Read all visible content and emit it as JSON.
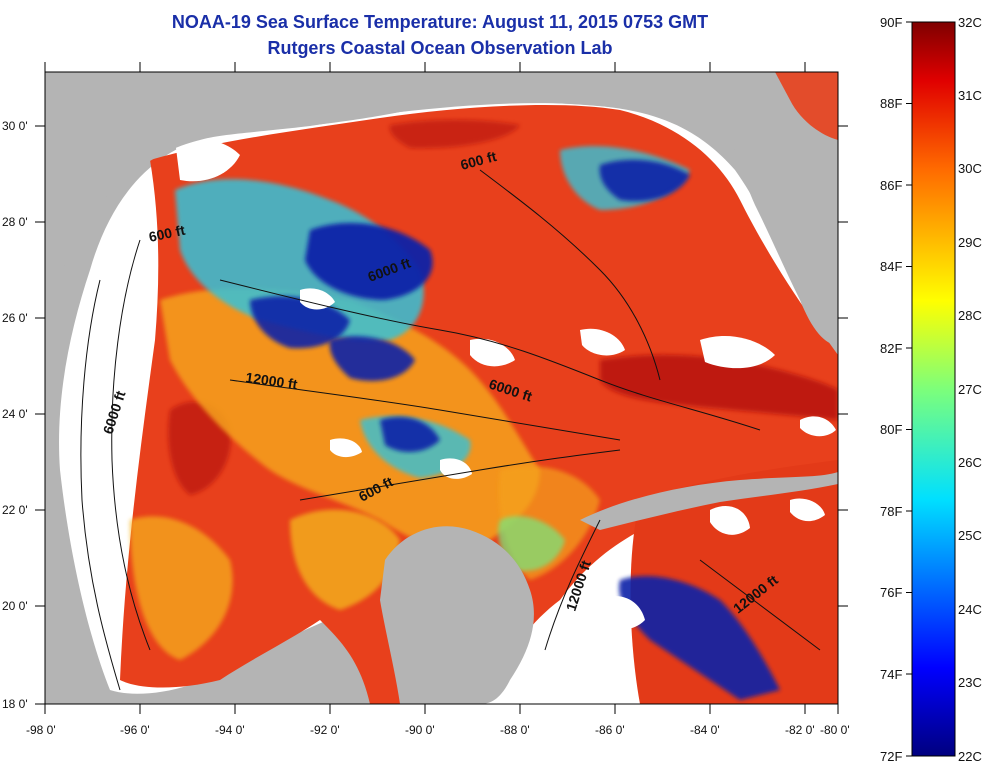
{
  "header": {
    "title": "NOAA-19 Sea Surface Temperature:  August 11, 2015 0753 GMT",
    "subtitle": "Rutgers Coastal Ocean Observation Lab"
  },
  "map": {
    "lon_ticks": [
      "-98 0'",
      "-96 0'",
      "-94 0'",
      "-92 0'",
      "-90 0'",
      "-88 0'",
      "-86 0'",
      "-84 0'",
      "-82 0'",
      "-80 0'"
    ],
    "lat_ticks": [
      "30 0'",
      "28 0'",
      "26 0'",
      "24 0'",
      "22 0'",
      "20 0'",
      "18 0'"
    ],
    "contour_labels": [
      "600 ft",
      "600 ft",
      "6000 ft",
      "12000 ft",
      "6000 ft",
      "6000 ft",
      "600 ft",
      "12000 ft",
      "12000 ft"
    ],
    "colors": {
      "land": "#b4b4b4",
      "no_data": "#ffffff",
      "warm": "#e8401c",
      "hot": "#b01010",
      "mild": "#f5a21a",
      "cool": "#36c2d8",
      "cold": "#1020a8"
    }
  },
  "colorbar": {
    "f_labels": [
      "90F",
      "88F",
      "86F",
      "84F",
      "82F",
      "80F",
      "78F",
      "76F",
      "74F",
      "72F"
    ],
    "c_labels": [
      "32C",
      "31C",
      "30C",
      "29C",
      "28C",
      "27C",
      "26C",
      "25C",
      "24C",
      "23C",
      "22C"
    ],
    "range_c": [
      22,
      32
    ],
    "range_f": [
      72,
      90
    ]
  }
}
